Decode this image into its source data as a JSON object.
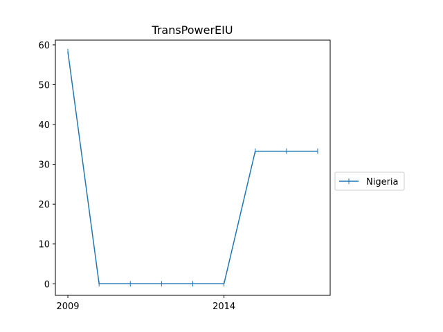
{
  "chart_data": {
    "type": "line",
    "title": "TransPowerEIU",
    "xlabel": "",
    "ylabel": "",
    "x": [
      2009,
      2010,
      2011,
      2012,
      2013,
      2014,
      2015,
      2016,
      2017
    ],
    "series": [
      {
        "name": "Nigeria",
        "color": "#1f77b4",
        "marker": "plus",
        "values": [
          58.3,
          0,
          0,
          0,
          0,
          0,
          33.3,
          33.3,
          33.3
        ]
      }
    ],
    "xlim": [
      2008.6,
      2017.4
    ],
    "ylim": [
      -2.9,
      61.2
    ],
    "xticks": [
      2009,
      2014
    ],
    "yticks": [
      0,
      10,
      20,
      30,
      40,
      50,
      60
    ],
    "grid": false,
    "legend_position": "center-right outside plot"
  }
}
